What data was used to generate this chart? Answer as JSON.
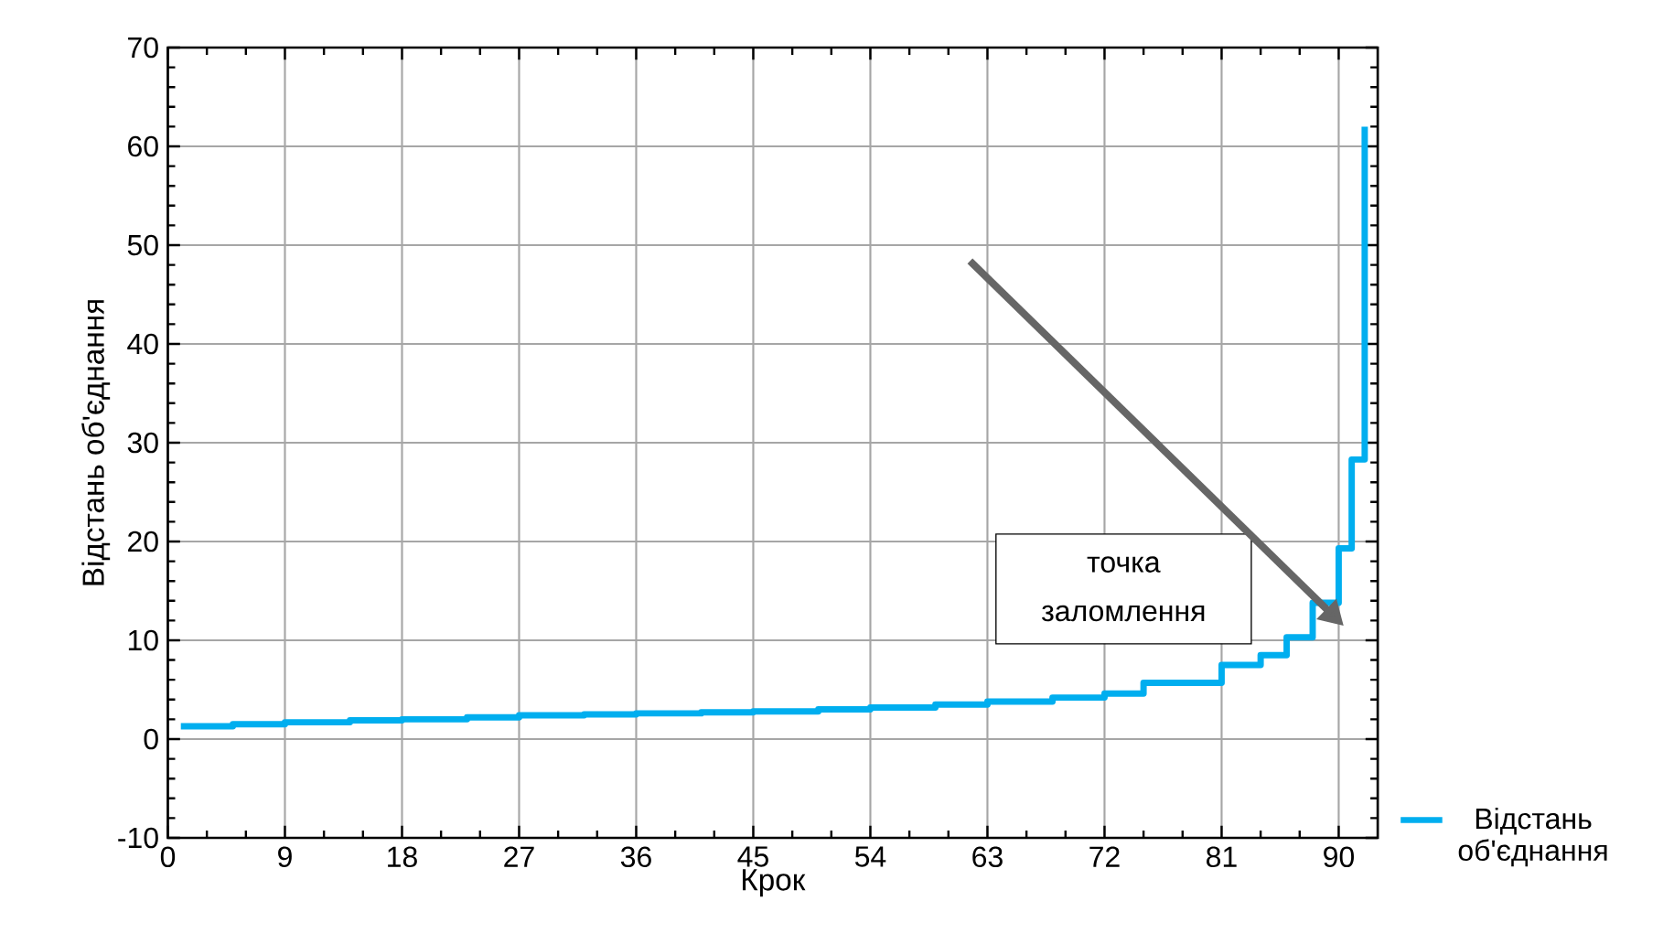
{
  "chart_data": {
    "type": "step",
    "xlabel": "Крок",
    "ylabel": "Відстань об'єднання",
    "x": [
      1,
      5,
      9,
      14,
      18,
      23,
      27,
      32,
      36,
      41,
      45,
      50,
      54,
      59,
      63,
      68,
      72,
      75,
      81,
      84,
      86,
      88,
      90,
      91,
      92
    ],
    "series": [
      {
        "name": "Відстань об'єднання",
        "color": "#00aeef",
        "values": [
          1.3,
          1.5,
          1.7,
          1.9,
          2.0,
          2.2,
          2.4,
          2.5,
          2.6,
          2.7,
          2.8,
          3.0,
          3.2,
          3.5,
          3.8,
          4.2,
          4.6,
          5.7,
          7.5,
          8.5,
          10.3,
          13.8,
          19.3,
          28.3,
          62
        ]
      }
    ],
    "xlim": [
      0,
      93
    ],
    "ylim": [
      -10,
      70
    ],
    "xticks": [
      0,
      9,
      18,
      27,
      36,
      45,
      54,
      63,
      72,
      81,
      90
    ],
    "yticks": [
      -10,
      0,
      10,
      20,
      30,
      40,
      50,
      60,
      70
    ],
    "grid": true,
    "legend": "bottom right",
    "marker": "none",
    "line_style": "solid",
    "annotations": [
      "точка заломлення"
    ]
  }
}
